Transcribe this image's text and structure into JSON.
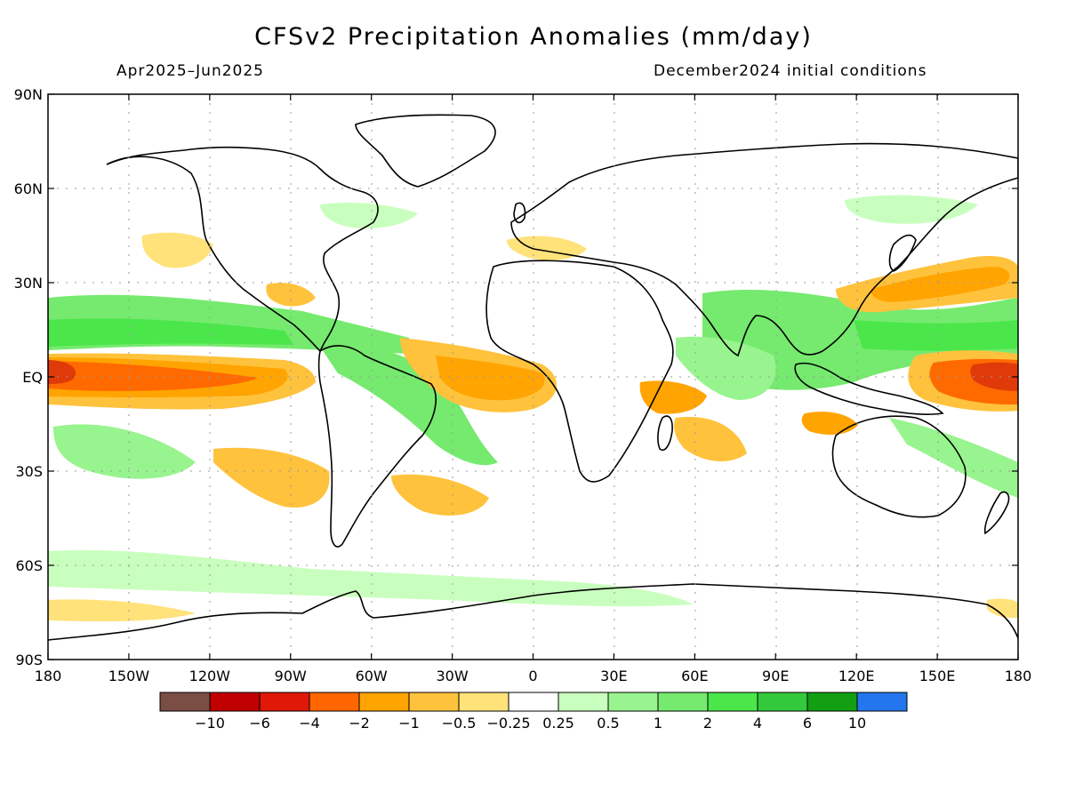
{
  "title": "CFSv2 Precipitation Anomalies (mm/day)",
  "period": "Apr2025–Jun2025",
  "init": "December2024 initial conditions",
  "lat_ticks": [
    "90N",
    "60N",
    "30N",
    "EQ",
    "30S",
    "60S",
    "90S"
  ],
  "lon_ticks": [
    "180",
    "150W",
    "120W",
    "90W",
    "60W",
    "30W",
    "0",
    "30E",
    "60E",
    "90E",
    "120E",
    "150E",
    "180"
  ],
  "colorbar": {
    "colors": [
      "#7a4e45",
      "#c00000",
      "#e01808",
      "#ff6600",
      "#ffa400",
      "#ffc23c",
      "#ffe27a",
      "#ffffff",
      "#c9ffbe",
      "#98f48e",
      "#75ea6e",
      "#4ae64a",
      "#33c93c",
      "#129f12",
      "#2376ed"
    ],
    "labels": [
      "−10",
      "−6",
      "−4",
      "−2",
      "−1",
      "−0.5",
      "−0.25",
      "0.25",
      "0.5",
      "1",
      "2",
      "4",
      "6",
      "10"
    ]
  },
  "palette": {
    "dry_strong": "#e03a0a",
    "dry_mid": "#ff6a00",
    "dry_orange": "#ffa400",
    "dry_light": "#ffc23c",
    "dry_pale": "#ffe27a",
    "wet_pale": "#c9ffbe",
    "wet_light": "#98f48e",
    "wet_mid": "#75ea6e",
    "wet_strong": "#4ae64a"
  }
}
